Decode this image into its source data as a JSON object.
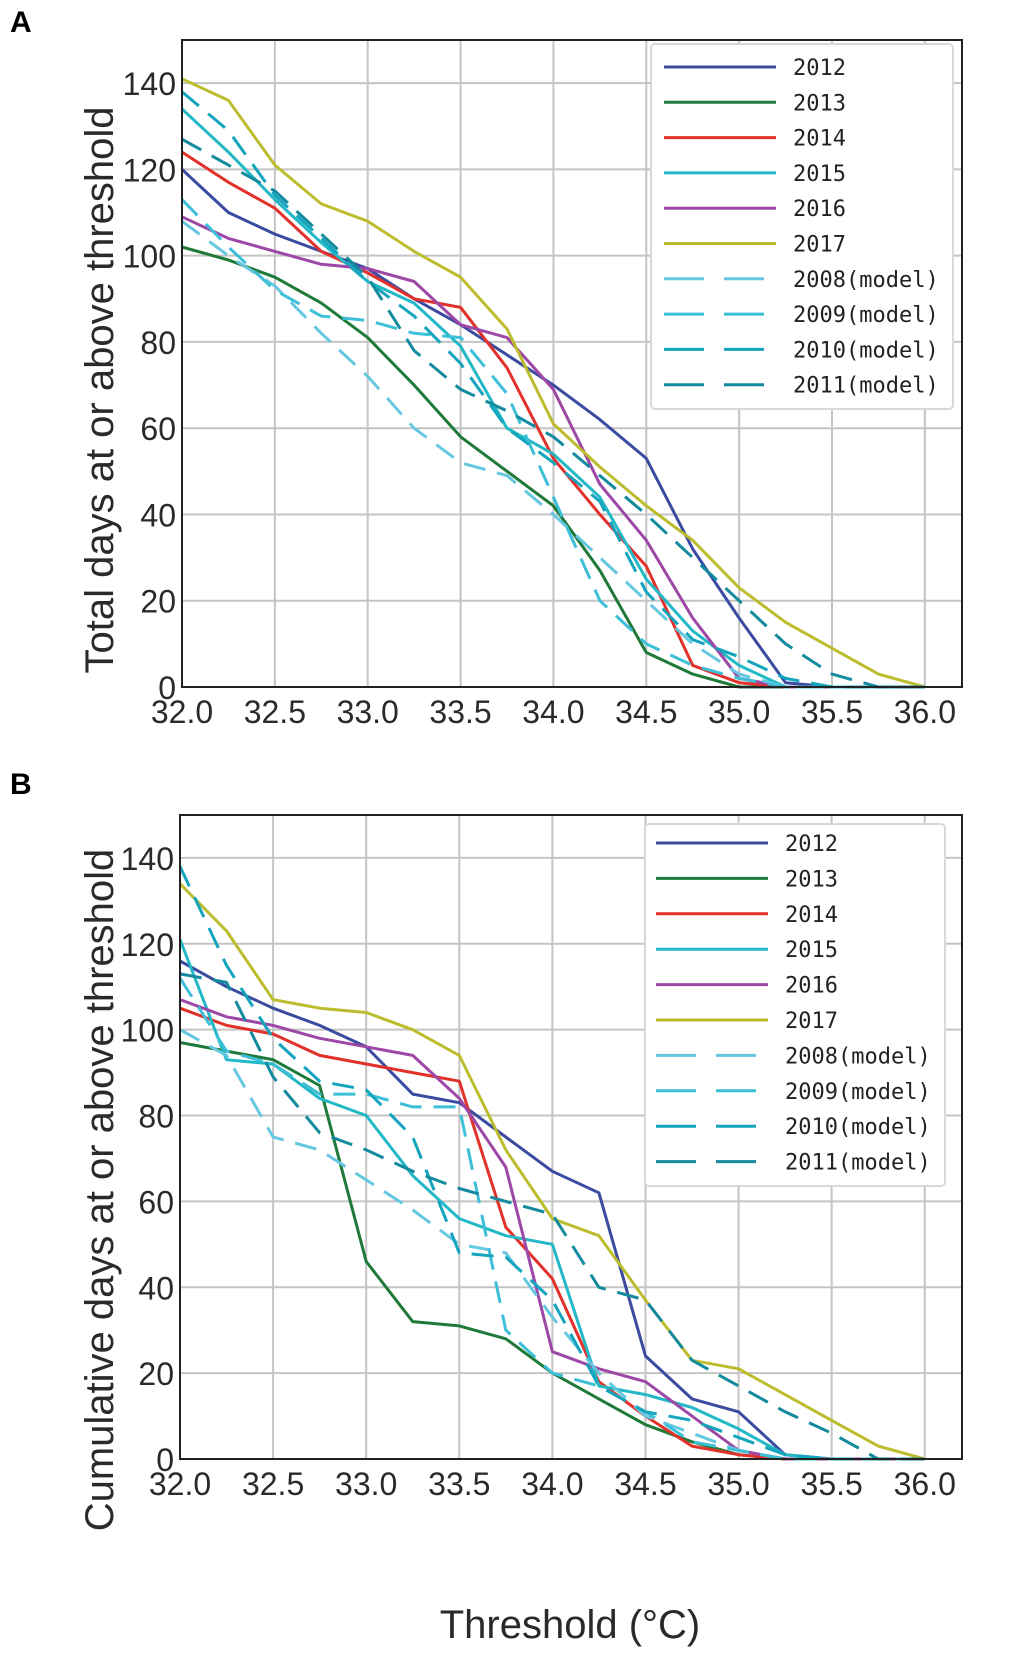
{
  "chart_data": [
    {
      "panel": "A",
      "type": "line",
      "title": "",
      "xlabel": "",
      "ylabel": "Total days at or above threshold",
      "xlim": [
        32.0,
        36.2
      ],
      "ylim": [
        0,
        150
      ],
      "xticks": [
        "32.0",
        "32.5",
        "33.0",
        "33.5",
        "34.0",
        "34.5",
        "35.0",
        "35.5",
        "36.0"
      ],
      "yticks": [
        "0",
        "20",
        "40",
        "60",
        "80",
        "100",
        "120",
        "140"
      ],
      "grid": true,
      "legend_position": "top-right",
      "x": [
        32.0,
        32.25,
        32.5,
        32.75,
        33.0,
        33.25,
        33.5,
        33.75,
        34.0,
        34.25,
        34.5,
        34.75,
        35.0,
        35.25,
        35.5,
        35.75,
        36.0
      ],
      "series": [
        {
          "name": "2012",
          "style": "solid",
          "color": "#3a4ba0",
          "values": [
            120,
            110,
            105,
            101,
            97,
            90,
            84,
            77,
            70,
            62,
            53,
            32,
            16,
            1,
            0,
            0,
            0
          ]
        },
        {
          "name": "2013",
          "style": "solid",
          "color": "#1f7a3a",
          "values": [
            102,
            99,
            95,
            89,
            81,
            70,
            58,
            50,
            42,
            27,
            8,
            3,
            0,
            0,
            0,
            0,
            0
          ]
        },
        {
          "name": "2014",
          "style": "solid",
          "color": "#e2312b",
          "values": [
            124,
            117,
            111,
            101,
            96,
            90,
            88,
            74,
            53,
            40,
            28,
            5,
            1,
            0,
            0,
            0,
            0
          ]
        },
        {
          "name": "2015",
          "style": "solid",
          "color": "#22b8c6",
          "values": [
            134,
            124,
            113,
            103,
            94,
            89,
            79,
            60,
            54,
            44,
            25,
            13,
            5,
            0,
            0,
            0,
            0
          ]
        },
        {
          "name": "2016",
          "style": "solid",
          "color": "#9d47a6",
          "values": [
            109,
            104,
            101,
            98,
            97,
            94,
            84,
            81,
            69,
            47,
            34,
            16,
            2,
            0,
            0,
            0,
            0
          ]
        },
        {
          "name": "2017",
          "style": "solid",
          "color": "#bcbd2e",
          "values": [
            141,
            136,
            121,
            112,
            108,
            101,
            95,
            83,
            61,
            51,
            42,
            34,
            23,
            15,
            9,
            3,
            0
          ]
        },
        {
          "name": "2008(model)",
          "style": "dashed",
          "color": "#66c8e0",
          "values": [
            108,
            100,
            93,
            82,
            72,
            60,
            52,
            49,
            40,
            30,
            20,
            10,
            3,
            0,
            0,
            0,
            0
          ]
        },
        {
          "name": "2009(model)",
          "style": "dashed",
          "color": "#3dbfd8",
          "values": [
            113,
            102,
            92,
            86,
            85,
            82,
            81,
            68,
            44,
            20,
            10,
            5,
            2,
            0,
            0,
            0,
            0
          ]
        },
        {
          "name": "2010(model)",
          "style": "dashed",
          "color": "#14a4bd",
          "values": [
            138,
            129,
            114,
            104,
            94,
            86,
            75,
            60,
            52,
            43,
            22,
            11,
            7,
            2,
            0,
            0,
            0
          ]
        },
        {
          "name": "2011(model)",
          "style": "dashed",
          "color": "#138a9e",
          "values": [
            127,
            121,
            115,
            105,
            95,
            78,
            69,
            64,
            58,
            49,
            40,
            30,
            20,
            10,
            3,
            0,
            0
          ]
        }
      ]
    },
    {
      "panel": "B",
      "type": "line",
      "title": "",
      "xlabel": "Threshold (°C)",
      "ylabel": "Cumulative days at or above threshold",
      "xlim": [
        32.0,
        36.2
      ],
      "ylim": [
        0,
        150
      ],
      "xticks": [
        "32.0",
        "32.5",
        "33.0",
        "33.5",
        "34.0",
        "34.5",
        "35.0",
        "35.5",
        "36.0"
      ],
      "yticks": [
        "0",
        "20",
        "40",
        "60",
        "80",
        "100",
        "120",
        "140"
      ],
      "grid": true,
      "legend_position": "top-right",
      "x": [
        32.0,
        32.25,
        32.5,
        32.75,
        33.0,
        33.25,
        33.5,
        33.75,
        34.0,
        34.25,
        34.5,
        34.75,
        35.0,
        35.25,
        35.5,
        35.75,
        36.0
      ],
      "series": [
        {
          "name": "2012",
          "style": "solid",
          "color": "#3a4ba0",
          "values": [
            116,
            110,
            105,
            101,
            96,
            85,
            83,
            75,
            67,
            62,
            24,
            14,
            11,
            1,
            0,
            0,
            0
          ]
        },
        {
          "name": "2013",
          "style": "solid",
          "color": "#1f7a3a",
          "values": [
            97,
            95,
            93,
            87,
            46,
            32,
            31,
            28,
            20,
            14,
            8,
            4,
            1,
            0,
            0,
            0,
            0
          ]
        },
        {
          "name": "2014",
          "style": "solid",
          "color": "#e2312b",
          "values": [
            105,
            101,
            99,
            94,
            92,
            90,
            88,
            54,
            42,
            18,
            10,
            3,
            1,
            0,
            0,
            0,
            0
          ]
        },
        {
          "name": "2015",
          "style": "solid",
          "color": "#22b8c6",
          "values": [
            121,
            93,
            92,
            84,
            80,
            66,
            56,
            52,
            50,
            17,
            15,
            12,
            7,
            1,
            0,
            0,
            0
          ]
        },
        {
          "name": "2016",
          "style": "solid",
          "color": "#9d47a6",
          "values": [
            107,
            103,
            101,
            98,
            96,
            94,
            84,
            68,
            25,
            21,
            18,
            10,
            2,
            0,
            0,
            0,
            0
          ]
        },
        {
          "name": "2017",
          "style": "solid",
          "color": "#bcbd2e",
          "values": [
            134,
            123,
            107,
            105,
            104,
            100,
            94,
            72,
            56,
            52,
            37,
            23,
            21,
            15,
            9,
            3,
            0
          ]
        },
        {
          "name": "2008(model)",
          "style": "dashed",
          "color": "#66c8e0",
          "values": [
            100,
            94,
            75,
            72,
            65,
            58,
            50,
            48,
            33,
            20,
            10,
            6,
            2,
            0,
            0,
            0,
            0
          ]
        },
        {
          "name": "2009(model)",
          "style": "dashed",
          "color": "#3dbfd8",
          "values": [
            112,
            95,
            92,
            85,
            85,
            82,
            82,
            30,
            20,
            17,
            11,
            4,
            2,
            0,
            0,
            0,
            0
          ]
        },
        {
          "name": "2010(model)",
          "style": "dashed",
          "color": "#14a4bd",
          "values": [
            138,
            115,
            98,
            88,
            86,
            75,
            48,
            47,
            37,
            17,
            11,
            9,
            5,
            1,
            0,
            0,
            0
          ]
        },
        {
          "name": "2011(model)",
          "style": "dashed",
          "color": "#138a9e",
          "values": [
            113,
            111,
            89,
            76,
            72,
            67,
            63,
            60,
            57,
            40,
            37,
            23,
            17,
            11,
            6,
            0,
            0
          ]
        }
      ]
    }
  ],
  "panels": {
    "a": {
      "letter": "A",
      "ylabel": "Total days at or above threshold"
    },
    "b": {
      "letter": "B",
      "ylabel": "Cumulative days at or above threshold",
      "xlabel": "Threshold (°C)"
    }
  }
}
